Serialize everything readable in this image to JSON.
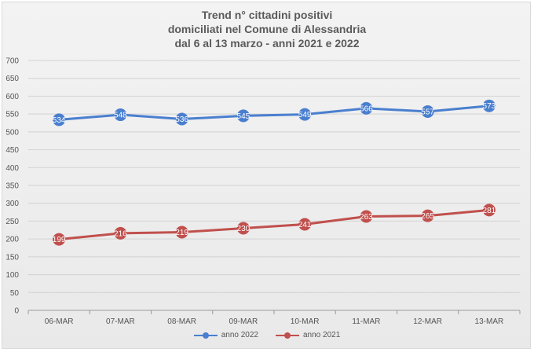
{
  "chart_data": {
    "type": "line",
    "title_lines": [
      "Trend n° cittadini positivi",
      "domiciliati nel Comune di Alessandria",
      "dal 6 al 13 marzo - anni 2021 e 2022"
    ],
    "categories": [
      "06-MAR",
      "07-MAR",
      "08-MAR",
      "09-MAR",
      "10-MAR",
      "11-MAR",
      "12-MAR",
      "13-MAR"
    ],
    "ylim": [
      0,
      700
    ],
    "yticks": [
      0,
      50,
      100,
      150,
      200,
      250,
      300,
      350,
      400,
      450,
      500,
      550,
      600,
      650,
      700
    ],
    "grid": true,
    "legend_position": "bottom",
    "series": [
      {
        "name": "anno 2022",
        "color": "#4a7fcf",
        "values": [
          534,
          548,
          536,
          545,
          549,
          566,
          557,
          573
        ],
        "labels": [
          "534",
          "548",
          "536",
          "545",
          "549",
          "566",
          "557",
          "573"
        ]
      },
      {
        "name": "anno 2021",
        "color": "#c0504d",
        "values": [
          199,
          216,
          219,
          230,
          241,
          263,
          265,
          281
        ],
        "labels": [
          "199",
          "216",
          "219",
          "230",
          "241",
          "263",
          "265",
          "281"
        ]
      }
    ]
  }
}
